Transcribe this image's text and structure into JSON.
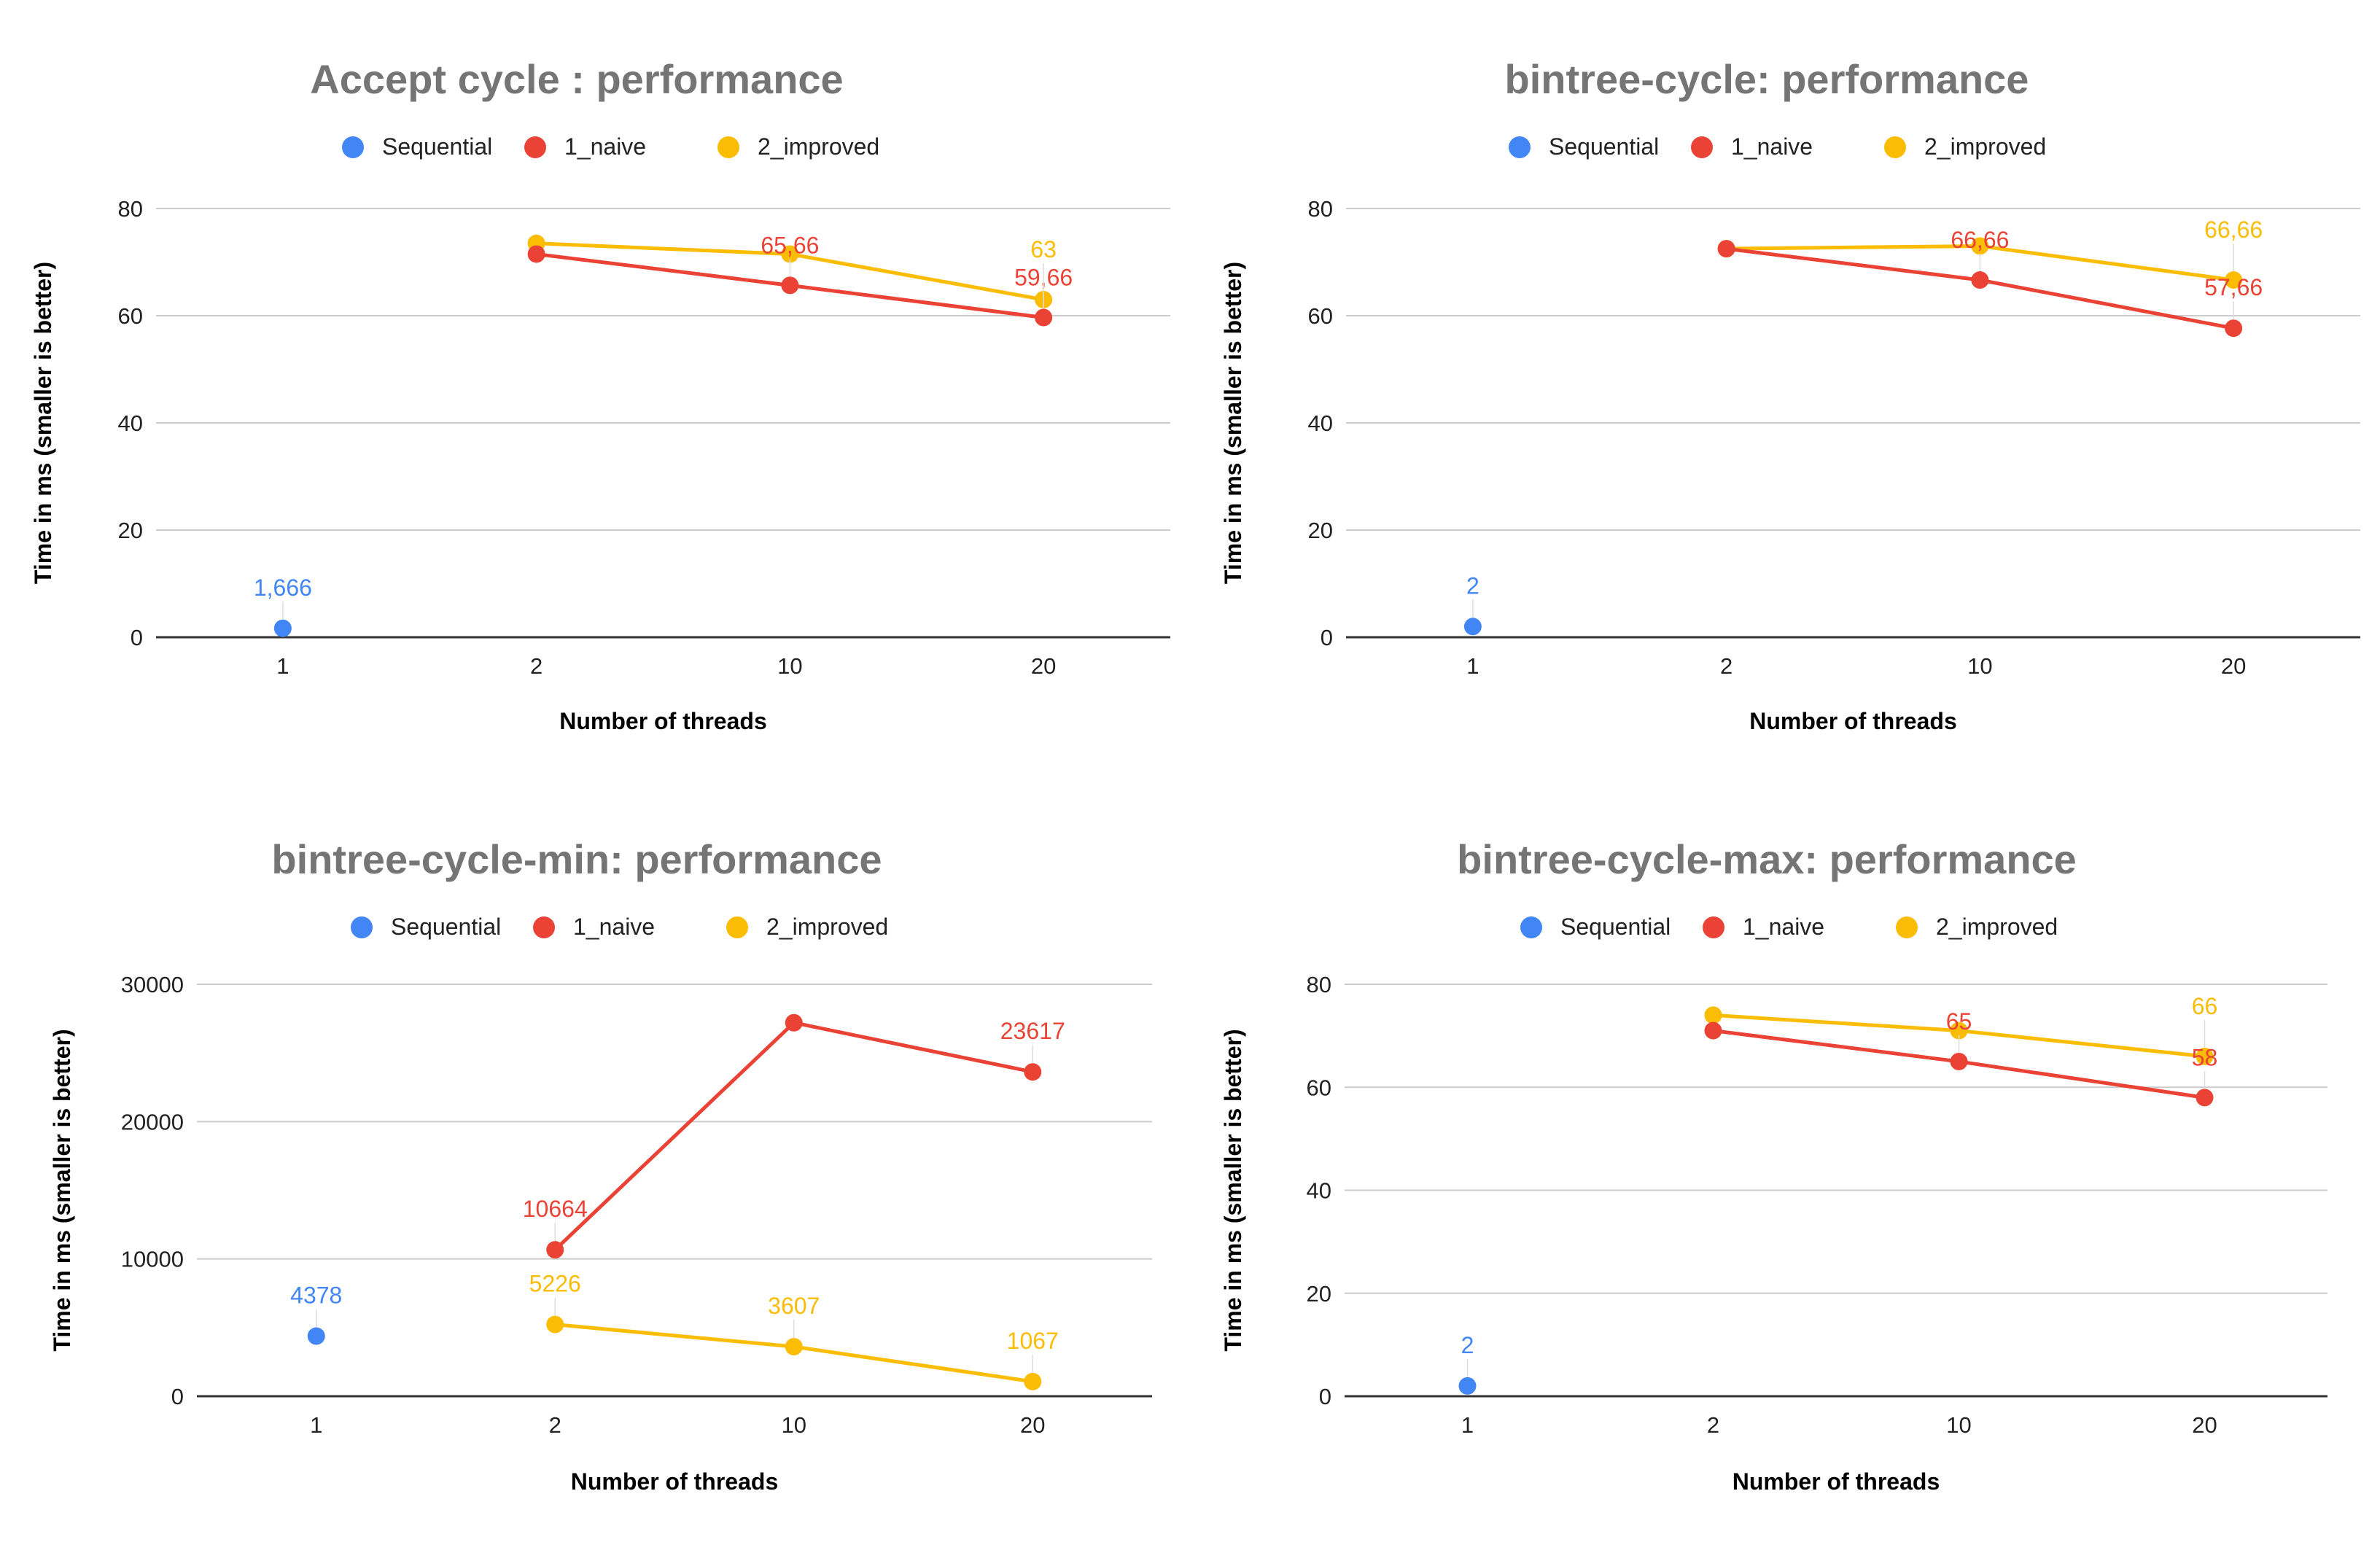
{
  "legend": [
    "Sequential",
    "1_naive",
    "2_improved"
  ],
  "colors": {
    "Sequential": "#4285f4",
    "1_naive": "#ea4335",
    "2_improved": "#fbbc04"
  },
  "chart_data": [
    {
      "type": "line",
      "title": "Accept cycle : performance",
      "xlabel": "Number of threads",
      "ylabel": "Time in ms (smaller is better)",
      "categories": [
        "1",
        "2",
        "10",
        "20"
      ],
      "ylim": [
        0,
        80
      ],
      "yticks": [
        "0",
        "20",
        "40",
        "60",
        "80"
      ],
      "grid": true,
      "legend_position": "top",
      "series": [
        {
          "name": "Sequential",
          "values": [
            1.666,
            null,
            null,
            null
          ],
          "labels": [
            "1,666",
            null,
            null,
            null
          ]
        },
        {
          "name": "1_naive",
          "values": [
            null,
            71.5,
            65.66,
            59.66
          ],
          "labels": [
            null,
            null,
            "65,66",
            "59,66"
          ]
        },
        {
          "name": "2_improved",
          "values": [
            null,
            73.5,
            71.5,
            63
          ],
          "labels": [
            null,
            null,
            null,
            "63"
          ]
        }
      ]
    },
    {
      "type": "line",
      "title": "bintree-cycle: performance",
      "xlabel": "Number of threads",
      "ylabel": "Time in ms (smaller is better)",
      "categories": [
        "1",
        "2",
        "10",
        "20"
      ],
      "ylim": [
        0,
        80
      ],
      "yticks": [
        "0",
        "20",
        "40",
        "60",
        "80"
      ],
      "grid": true,
      "legend_position": "top",
      "series": [
        {
          "name": "Sequential",
          "values": [
            2,
            null,
            null,
            null
          ],
          "labels": [
            "2",
            null,
            null,
            null
          ]
        },
        {
          "name": "1_naive",
          "values": [
            null,
            72.5,
            66.66,
            57.66
          ],
          "labels": [
            null,
            null,
            "66,66",
            "57,66"
          ]
        },
        {
          "name": "2_improved",
          "values": [
            null,
            72.5,
            73,
            66.66
          ],
          "labels": [
            null,
            null,
            null,
            "66,66"
          ]
        }
      ]
    },
    {
      "type": "line",
      "title": "bintree-cycle-min: performance",
      "xlabel": "Number of threads",
      "ylabel": "Time in ms (smaller is better)",
      "categories": [
        "1",
        "2",
        "10",
        "20"
      ],
      "ylim": [
        0,
        30000
      ],
      "yticks": [
        "0",
        "10000",
        "20000",
        "30000"
      ],
      "grid": true,
      "legend_position": "top",
      "series": [
        {
          "name": "Sequential",
          "values": [
            4378,
            null,
            null,
            null
          ],
          "labels": [
            "4378",
            null,
            null,
            null
          ]
        },
        {
          "name": "1_naive",
          "values": [
            null,
            10664,
            27200,
            23617
          ],
          "labels": [
            null,
            "10664",
            null,
            "23617"
          ]
        },
        {
          "name": "2_improved",
          "values": [
            null,
            5226,
            3607,
            1067
          ],
          "labels": [
            null,
            "5226",
            "3607",
            "1067"
          ]
        }
      ]
    },
    {
      "type": "line",
      "title": "bintree-cycle-max: performance",
      "xlabel": "Number of threads",
      "ylabel": "Time in ms (smaller is better)",
      "categories": [
        "1",
        "2",
        "10",
        "20"
      ],
      "ylim": [
        0,
        80
      ],
      "yticks": [
        "0",
        "20",
        "40",
        "60",
        "80"
      ],
      "grid": true,
      "legend_position": "top",
      "series": [
        {
          "name": "Sequential",
          "values": [
            2,
            null,
            null,
            null
          ],
          "labels": [
            "2",
            null,
            null,
            null
          ]
        },
        {
          "name": "1_naive",
          "values": [
            null,
            71,
            65,
            58
          ],
          "labels": [
            null,
            null,
            "65",
            "58"
          ]
        },
        {
          "name": "2_improved",
          "values": [
            null,
            74,
            71,
            66
          ],
          "labels": [
            null,
            null,
            null,
            "66"
          ]
        }
      ]
    }
  ]
}
